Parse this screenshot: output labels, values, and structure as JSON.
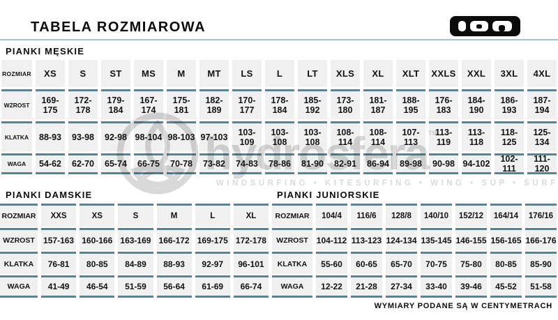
{
  "header": {
    "title": "TABELA ROZMIAROWA",
    "logo": "ION"
  },
  "row_labels": {
    "rozmiar": "ROZMIAR",
    "wzrost": "WZROST",
    "klatka": "KLATKA",
    "waga": "WAGA"
  },
  "tables": {
    "men": {
      "title": "PIANKI MĘSKIE",
      "sizes": [
        "XS",
        "S",
        "ST",
        "MS",
        "M",
        "MT",
        "LS",
        "L",
        "LT",
        "XLS",
        "XL",
        "XLT",
        "XXLS",
        "XXL",
        "3XL",
        "4XL"
      ],
      "wzrost": [
        "169-175",
        "172-178",
        "179-184",
        "167-174",
        "175-181",
        "182-189",
        "170-177",
        "178-184",
        "185-192",
        "173-180",
        "181-187",
        "188-195",
        "176-183",
        "184-190",
        "186-193",
        "187-194"
      ],
      "klatka": [
        "88-93",
        "93-98",
        "92-98",
        "98-104",
        "98-103",
        "97-103",
        "103-109",
        "103-108",
        "103-108",
        "108-114",
        "108-114",
        "107-113",
        "113-119",
        "113-118",
        "118-125",
        "125-134"
      ],
      "waga": [
        "54-62",
        "62-70",
        "65-74",
        "66-75",
        "70-78",
        "73-82",
        "74-83",
        "78-86",
        "81-90",
        "82-91",
        "86-94",
        "89-98",
        "90-98",
        "94-102",
        "102-111",
        "111-120"
      ]
    },
    "women": {
      "title": "PIANKI DAMSKIE",
      "sizes": [
        "XXS",
        "XS",
        "S",
        "M",
        "L",
        "XL"
      ],
      "wzrost": [
        "157-163",
        "160-166",
        "163-169",
        "166-172",
        "169-175",
        "172-178"
      ],
      "klatka": [
        "76-81",
        "80-85",
        "84-89",
        "88-93",
        "92-97",
        "96-101"
      ],
      "waga": [
        "41-49",
        "46-54",
        "51-59",
        "56-64",
        "61-69",
        "66-74"
      ]
    },
    "junior": {
      "title": "PIANKI JUNIORSKIE",
      "sizes": [
        "104/4",
        "116/6",
        "128/8",
        "140/10",
        "152/12",
        "164/14",
        "176/16"
      ],
      "wzrost": [
        "104-112",
        "113-123",
        "124-134",
        "135-145",
        "146-155",
        "156-165",
        "166-176"
      ],
      "klatka": [
        "55-60",
        "60-65",
        "65-70",
        "70-75",
        "75-80",
        "80-85",
        "85-90"
      ],
      "waga": [
        "12-22",
        "21-28",
        "27-34",
        "33-40",
        "39-46",
        "45-52",
        "51-58"
      ]
    }
  },
  "watermark": {
    "brand": "hydrosfera",
    "tm": "TM",
    "tagline": "WINDSURFING • KITESURFING • WING • SUP • SURF"
  },
  "footer": {
    "note": "WYMIARY PODANE SĄ W CENTYMETRACH"
  }
}
